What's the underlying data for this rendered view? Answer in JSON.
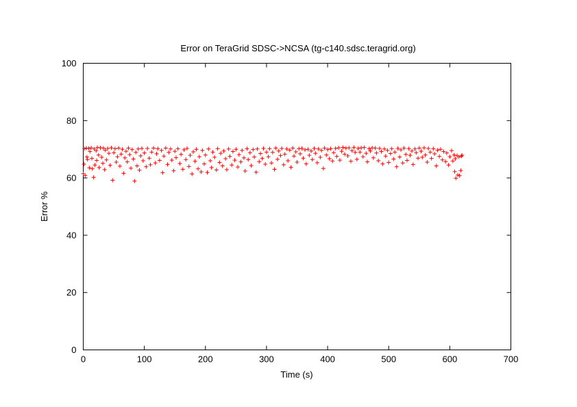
{
  "chart_data": {
    "type": "scatter",
    "title": "Error on TeraGrid SDSC->NCSA (tg-c140.sdsc.teragrid.org)",
    "xlabel": "Time (s)",
    "ylabel": "Error %",
    "xlim": [
      0,
      700
    ],
    "ylim": [
      0,
      100
    ],
    "xticks": [
      0,
      100,
      200,
      300,
      400,
      500,
      600,
      700
    ],
    "yticks": [
      0,
      20,
      40,
      60,
      80,
      100
    ],
    "grid": false,
    "legend": "none",
    "marker": "+",
    "marker_color": "#ff0000",
    "series": [
      {
        "points": [
          [
            0,
            61.5
          ],
          [
            1,
            64.8
          ],
          [
            2,
            70.2
          ],
          [
            3,
            60.9
          ],
          [
            5,
            70.4
          ],
          [
            6,
            67.3
          ],
          [
            7,
            66.4
          ],
          [
            9,
            70.3
          ],
          [
            10,
            63.5
          ],
          [
            11,
            69.2
          ],
          [
            13,
            70.5
          ],
          [
            14,
            66.8
          ],
          [
            15,
            63.2
          ],
          [
            17,
            60.2
          ],
          [
            18,
            70.1
          ],
          [
            19,
            64.5
          ],
          [
            21,
            69.5
          ],
          [
            22,
            66.1
          ],
          [
            23,
            70.6
          ],
          [
            25,
            68.0
          ],
          [
            26,
            63.6
          ],
          [
            28,
            70.5
          ],
          [
            30,
            67.2
          ],
          [
            32,
            65.1
          ],
          [
            33,
            70.4
          ],
          [
            35,
            62.9
          ],
          [
            36,
            69.7
          ],
          [
            38,
            66.3
          ],
          [
            40,
            70.3
          ],
          [
            42,
            68.6
          ],
          [
            44,
            64.4
          ],
          [
            46,
            70.5
          ],
          [
            48,
            59.2
          ],
          [
            50,
            68.8
          ],
          [
            52,
            70.2
          ],
          [
            54,
            65.5
          ],
          [
            56,
            67.4
          ],
          [
            58,
            70.4
          ],
          [
            60,
            64.1
          ],
          [
            62,
            68.3
          ],
          [
            64,
            70.0
          ],
          [
            66,
            61.6
          ],
          [
            68,
            67.0
          ],
          [
            70,
            69.3
          ],
          [
            72,
            65.6
          ],
          [
            74,
            70.4
          ],
          [
            76,
            68.1
          ],
          [
            78,
            63.4
          ],
          [
            80,
            69.9
          ],
          [
            82,
            66.6
          ],
          [
            84,
            58.9
          ],
          [
            86,
            68.9
          ],
          [
            88,
            64.2
          ],
          [
            90,
            70.1
          ],
          [
            92,
            62.7
          ],
          [
            94,
            67.7
          ],
          [
            96,
            70.3
          ],
          [
            98,
            66.0
          ],
          [
            100,
            68.7
          ],
          [
            103,
            63.9
          ],
          [
            105,
            70.3
          ],
          [
            108,
            66.9
          ],
          [
            110,
            64.6
          ],
          [
            112,
            69.0
          ],
          [
            115,
            70.4
          ],
          [
            118,
            65.2
          ],
          [
            120,
            68.4
          ],
          [
            122,
            70.2
          ],
          [
            125,
            66.1
          ],
          [
            128,
            69.6
          ],
          [
            130,
            61.8
          ],
          [
            132,
            67.6
          ],
          [
            135,
            70.4
          ],
          [
            138,
            64.7
          ],
          [
            140,
            68.9
          ],
          [
            143,
            70.1
          ],
          [
            145,
            66.2
          ],
          [
            148,
            62.5
          ],
          [
            150,
            69.3
          ],
          [
            152,
            67.1
          ],
          [
            155,
            70.2
          ],
          [
            158,
            65.0
          ],
          [
            160,
            68.2
          ],
          [
            163,
            63.0
          ],
          [
            165,
            69.8
          ],
          [
            168,
            66.4
          ],
          [
            170,
            70.3
          ],
          [
            173,
            64.0
          ],
          [
            175,
            67.9
          ],
          [
            178,
            61.4
          ],
          [
            180,
            69.1
          ],
          [
            183,
            65.8
          ],
          [
            185,
            70.0
          ],
          [
            188,
            63.2
          ],
          [
            190,
            67.4
          ],
          [
            193,
            62.1
          ],
          [
            195,
            69.6
          ],
          [
            198,
            64.9
          ],
          [
            200,
            68.0
          ],
          [
            203,
            61.9
          ],
          [
            205,
            70.1
          ],
          [
            208,
            66.0
          ],
          [
            210,
            63.6
          ],
          [
            212,
            69.0
          ],
          [
            215,
            67.2
          ],
          [
            218,
            62.8
          ],
          [
            220,
            70.2
          ],
          [
            223,
            65.4
          ],
          [
            225,
            68.6
          ],
          [
            228,
            64.2
          ],
          [
            230,
            69.4
          ],
          [
            233,
            66.7
          ],
          [
            235,
            62.9
          ],
          [
            238,
            70.1
          ],
          [
            240,
            67.5
          ],
          [
            243,
            64.5
          ],
          [
            245,
            69.2
          ],
          [
            248,
            66.2
          ],
          [
            250,
            70.0
          ],
          [
            253,
            63.8
          ],
          [
            255,
            68.1
          ],
          [
            258,
            65.6
          ],
          [
            260,
            69.6
          ],
          [
            263,
            67.0
          ],
          [
            265,
            62.4
          ],
          [
            268,
            70.2
          ],
          [
            270,
            66.4
          ],
          [
            273,
            68.8
          ],
          [
            275,
            64.3
          ],
          [
            278,
            69.9
          ],
          [
            280,
            67.3
          ],
          [
            283,
            62.0
          ],
          [
            285,
            70.1
          ],
          [
            288,
            65.7
          ],
          [
            290,
            68.5
          ],
          [
            293,
            66.8
          ],
          [
            295,
            70.3
          ],
          [
            298,
            64.8
          ],
          [
            300,
            69.0
          ],
          [
            303,
            67.4
          ],
          [
            305,
            70.2
          ],
          [
            308,
            65.2
          ],
          [
            310,
            68.9
          ],
          [
            313,
            63.0
          ],
          [
            315,
            70.4
          ],
          [
            318,
            66.5
          ],
          [
            320,
            69.4
          ],
          [
            323,
            67.8
          ],
          [
            325,
            70.3
          ],
          [
            328,
            64.6
          ],
          [
            330,
            68.3
          ],
          [
            333,
            70.1
          ],
          [
            335,
            66.0
          ],
          [
            338,
            69.7
          ],
          [
            340,
            63.7
          ],
          [
            343,
            70.4
          ],
          [
            345,
            67.6
          ],
          [
            348,
            69.1
          ],
          [
            350,
            65.5
          ],
          [
            353,
            70.2
          ],
          [
            355,
            68.4
          ],
          [
            358,
            70.3
          ],
          [
            360,
            66.9
          ],
          [
            363,
            69.8
          ],
          [
            365,
            64.9
          ],
          [
            368,
            70.0
          ],
          [
            370,
            67.9
          ],
          [
            373,
            69.4
          ],
          [
            375,
            66.4
          ],
          [
            378,
            70.3
          ],
          [
            380,
            68.6
          ],
          [
            383,
            65.3
          ],
          [
            385,
            70.1
          ],
          [
            388,
            67.2
          ],
          [
            390,
            69.6
          ],
          [
            393,
            63.3
          ],
          [
            395,
            70.4
          ],
          [
            398,
            68.0
          ],
          [
            400,
            69.9
          ],
          [
            403,
            66.7
          ],
          [
            405,
            70.2
          ],
          [
            408,
            65.9
          ],
          [
            410,
            68.8
          ],
          [
            413,
            70.3
          ],
          [
            415,
            67.5
          ],
          [
            418,
            70.5
          ],
          [
            420,
            66.2
          ],
          [
            423,
            69.3
          ],
          [
            425,
            70.6
          ],
          [
            428,
            68.3
          ],
          [
            430,
            70.4
          ],
          [
            433,
            67.7
          ],
          [
            435,
            70.5
          ],
          [
            438,
            65.8
          ],
          [
            440,
            69.5
          ],
          [
            443,
            70.6
          ],
          [
            445,
            68.9
          ],
          [
            448,
            66.5
          ],
          [
            450,
            70.3
          ],
          [
            453,
            69.0
          ],
          [
            455,
            70.5
          ],
          [
            458,
            67.4
          ],
          [
            460,
            70.6
          ],
          [
            463,
            68.6
          ],
          [
            465,
            65.6
          ],
          [
            468,
            70.2
          ],
          [
            470,
            69.4
          ],
          [
            473,
            70.5
          ],
          [
            475,
            67.0
          ],
          [
            478,
            70.4
          ],
          [
            480,
            68.7
          ],
          [
            483,
            66.0
          ],
          [
            485,
            70.3
          ],
          [
            488,
            69.2
          ],
          [
            490,
            64.9
          ],
          [
            493,
            70.1
          ],
          [
            495,
            67.6
          ],
          [
            498,
            69.6
          ],
          [
            500,
            65.4
          ],
          [
            503,
            68.5
          ],
          [
            505,
            70.2
          ],
          [
            508,
            66.6
          ],
          [
            510,
            69.0
          ],
          [
            513,
            63.9
          ],
          [
            515,
            70.3
          ],
          [
            518,
            67.3
          ],
          [
            520,
            69.8
          ],
          [
            523,
            65.2
          ],
          [
            525,
            70.4
          ],
          [
            528,
            68.2
          ],
          [
            530,
            66.1
          ],
          [
            533,
            70.2
          ],
          [
            535,
            67.9
          ],
          [
            538,
            69.4
          ],
          [
            540,
            64.7
          ],
          [
            543,
            70.1
          ],
          [
            545,
            68.8
          ],
          [
            548,
            66.9
          ],
          [
            550,
            70.4
          ],
          [
            553,
            69.3
          ],
          [
            555,
            67.2
          ],
          [
            558,
            70.5
          ],
          [
            560,
            68.0
          ],
          [
            563,
            65.5
          ],
          [
            565,
            70.3
          ],
          [
            568,
            69.0
          ],
          [
            570,
            66.8
          ],
          [
            573,
            70.2
          ],
          [
            575,
            68.4
          ],
          [
            578,
            64.2
          ],
          [
            580,
            69.7
          ],
          [
            583,
            67.5
          ],
          [
            585,
            70.0
          ],
          [
            588,
            66.3
          ],
          [
            590,
            69.2
          ],
          [
            593,
            65.7
          ],
          [
            595,
            68.7
          ],
          [
            598,
            64.5
          ],
          [
            600,
            67.4
          ],
          [
            603,
            69.5
          ],
          [
            605,
            65.9
          ],
          [
            607,
            68.0
          ],
          [
            608,
            62.2
          ],
          [
            609,
            66.7
          ],
          [
            610,
            59.9
          ],
          [
            612,
            67.8
          ],
          [
            613,
            61.0
          ],
          [
            615,
            67.3
          ],
          [
            616,
            60.8
          ],
          [
            618,
            62.6
          ],
          [
            619,
            67.6
          ],
          [
            620,
            67.9
          ]
        ]
      }
    ]
  }
}
